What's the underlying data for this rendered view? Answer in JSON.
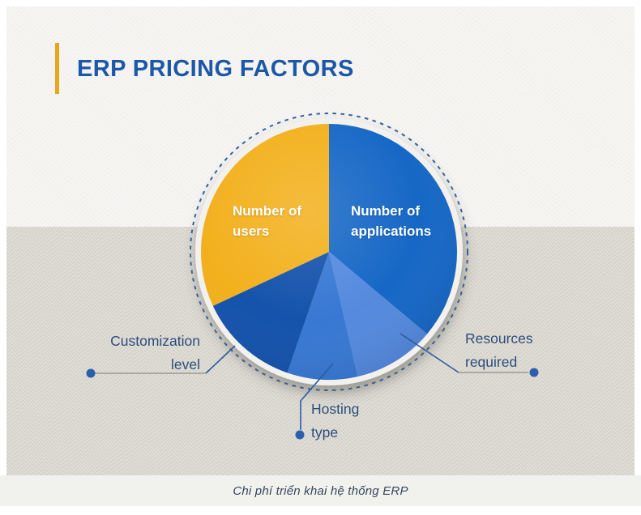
{
  "header": {
    "title": "ERP PRICING FACTORS",
    "accent_bar_color": "#e8a61f",
    "title_color": "#1b58a8"
  },
  "caption": {
    "text": "Chi phí triển khai hệ thống ERP"
  },
  "colors": {
    "background_top": "#f4f3f0",
    "background_bottom": "#d8d5cd",
    "caption_strip": "#f1f1ee",
    "dashed_ring": "#3565a4",
    "leader_line_navy": "#2c5c9e",
    "leader_line_gray": "#9a9a94",
    "leader_dot": "#2a5fae",
    "outer_label_text": "#2b4d7d"
  },
  "chart_data": {
    "type": "pie",
    "title": "ERP Pricing Factors",
    "legend_position": "labels inside and around chart",
    "center": [
      406,
      311
    ],
    "radius": 158,
    "segments": [
      {
        "label": "Number of applications",
        "percent": 36,
        "start_angle": 0,
        "end_angle": 130,
        "color": "#0f63c4",
        "label_position": "inside-right"
      },
      {
        "label": "Resources required",
        "percent": 10,
        "start_angle": 130,
        "end_angle": 167,
        "color": "#4f86dd",
        "label_position": "outside-bottom-right"
      },
      {
        "label": "Hosting type",
        "percent": 9,
        "start_angle": 167,
        "end_angle": 199,
        "color": "#3274d2",
        "label_position": "outside-bottom"
      },
      {
        "label": "Customization level",
        "percent": 13,
        "start_angle": 199,
        "end_angle": 245,
        "color": "#0d4da9",
        "label_position": "outside-left"
      },
      {
        "label": "Number of users",
        "percent": 32,
        "start_angle": 245,
        "end_angle": 360,
        "color": "#f2ae16",
        "label_position": "inside-left"
      }
    ]
  },
  "labels": {
    "users_line1": "Number of",
    "users_line2": "users",
    "applications_line1": "Number of",
    "applications_line2": "applications",
    "customization_line1": "Customization",
    "customization_line2": "level",
    "hosting_line1": "Hosting",
    "hosting_line2": "type",
    "resources_line1": "Resources",
    "resources_line2": "required"
  }
}
